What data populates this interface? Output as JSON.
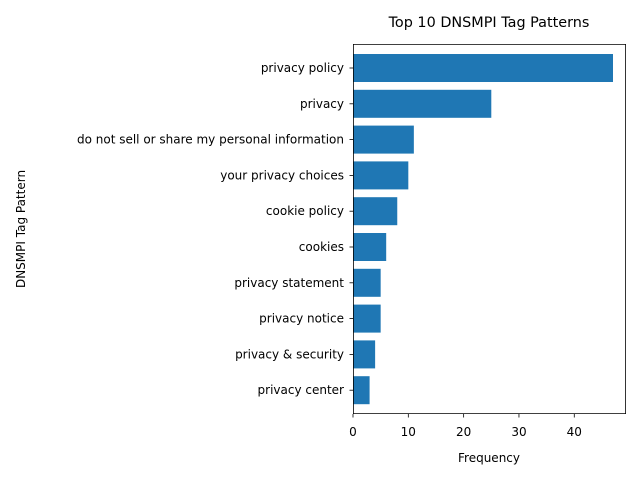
{
  "chart_data": {
    "type": "bar",
    "orientation": "horizontal",
    "title": "Top 10 DNSMPI Tag Patterns",
    "xlabel": "Frequency",
    "ylabel": "DNSMPI Tag Pattern",
    "categories": [
      "privacy policy",
      "privacy",
      "do not sell or share my personal information",
      "your privacy choices",
      "cookie policy",
      "cookies",
      "privacy statement",
      "privacy notice",
      "privacy & security",
      "privacy center"
    ],
    "values": [
      47,
      25,
      11,
      10,
      8,
      6,
      5,
      5,
      4,
      3
    ],
    "xlim": [
      0,
      49.35
    ],
    "xticks": [
      0,
      10,
      20,
      30,
      40
    ],
    "xtick_labels": [
      "0",
      "10",
      "20",
      "30",
      "40"
    ],
    "bar_color": "#1f77b4",
    "grid": false
  }
}
